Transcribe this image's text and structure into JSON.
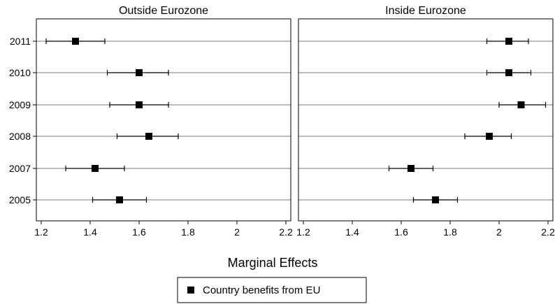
{
  "chart_data": {
    "type": "scatter",
    "xlabel": "Marginal Effects",
    "xlim": [
      1.18,
      2.22
    ],
    "xticks": [
      1.2,
      1.4,
      1.6,
      1.8,
      2.0,
      2.2
    ],
    "xtick_labels": [
      "1.2",
      "1.4",
      "1.6",
      "1.8",
      "2",
      "2.2"
    ],
    "categories": [
      "2011",
      "2010",
      "2009",
      "2008",
      "2007",
      "2005"
    ],
    "legend": {
      "label": "Country benefits from EU",
      "position": "bottom-center"
    },
    "grid": "horizontal",
    "marker_color": "#000000",
    "panels": [
      {
        "title": "Outside Eurozone",
        "series": [
          {
            "year": "2011",
            "estimate": 1.34,
            "lower": 1.22,
            "upper": 1.46
          },
          {
            "year": "2010",
            "estimate": 1.6,
            "lower": 1.47,
            "upper": 1.72
          },
          {
            "year": "2009",
            "estimate": 1.6,
            "lower": 1.48,
            "upper": 1.72
          },
          {
            "year": "2008",
            "estimate": 1.64,
            "lower": 1.51,
            "upper": 1.76
          },
          {
            "year": "2007",
            "estimate": 1.42,
            "lower": 1.3,
            "upper": 1.54
          },
          {
            "year": "2005",
            "estimate": 1.52,
            "lower": 1.41,
            "upper": 1.63
          }
        ]
      },
      {
        "title": "Inside Eurozone",
        "series": [
          {
            "year": "2011",
            "estimate": 2.04,
            "lower": 1.95,
            "upper": 2.12
          },
          {
            "year": "2010",
            "estimate": 2.04,
            "lower": 1.95,
            "upper": 2.13
          },
          {
            "year": "2009",
            "estimate": 2.09,
            "lower": 2.0,
            "upper": 2.19
          },
          {
            "year": "2008",
            "estimate": 1.96,
            "lower": 1.86,
            "upper": 2.05
          },
          {
            "year": "2007",
            "estimate": 1.64,
            "lower": 1.55,
            "upper": 1.73
          },
          {
            "year": "2005",
            "estimate": 1.74,
            "lower": 1.65,
            "upper": 1.83
          }
        ]
      }
    ]
  }
}
